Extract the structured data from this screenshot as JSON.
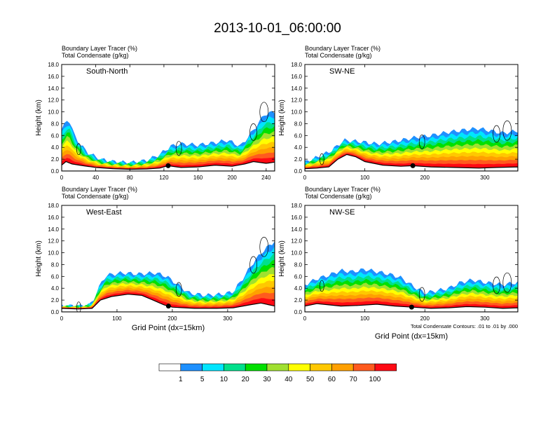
{
  "title": "2013-10-01_06:00:00",
  "panels": [
    {
      "name": "south-north",
      "label": "South-North",
      "field_title_1": "Boundary Layer Tracer   (%)",
      "field_title_2": "Total Condensate   (g/kg)",
      "ylabel": "Height (km)",
      "xlabel": "",
      "xmax": 250,
      "xticks": [
        0,
        40,
        80,
        120,
        160,
        200,
        240
      ],
      "marker_x": 125,
      "contour_note": "",
      "terrain": [
        [
          0,
          1.0
        ],
        [
          5,
          1.6
        ],
        [
          12,
          1.2
        ],
        [
          25,
          0.9
        ],
        [
          40,
          0.6
        ],
        [
          60,
          0.4
        ],
        [
          80,
          0.3
        ],
        [
          100,
          0.35
        ],
        [
          115,
          0.5
        ],
        [
          125,
          0.9
        ],
        [
          140,
          0.6
        ],
        [
          160,
          0.7
        ],
        [
          180,
          1.0
        ],
        [
          200,
          0.8
        ],
        [
          215,
          1.2
        ],
        [
          225,
          1.6
        ],
        [
          240,
          1.3
        ],
        [
          250,
          1.5
        ]
      ],
      "top": [
        [
          0,
          7
        ],
        [
          8,
          9
        ],
        [
          15,
          6
        ],
        [
          22,
          4.5
        ],
        [
          30,
          3.2
        ],
        [
          45,
          2.0
        ],
        [
          60,
          1.6
        ],
        [
          80,
          1.4
        ],
        [
          100,
          1.8
        ],
        [
          115,
          2.8
        ],
        [
          128,
          4.2
        ],
        [
          140,
          4.6
        ],
        [
          160,
          4.4
        ],
        [
          180,
          4.8
        ],
        [
          195,
          5.2
        ],
        [
          210,
          4.2
        ],
        [
          220,
          6
        ],
        [
          228,
          7.5
        ],
        [
          238,
          9.6
        ],
        [
          250,
          10.0
        ]
      ]
    },
    {
      "name": "sw-ne",
      "label": "SW-NE",
      "field_title_1": "Boundary Layer Tracer   (%)",
      "field_title_2": "Total Condensate   (g/kg)",
      "ylabel": "Height (km)",
      "xlabel": "",
      "xmax": 355,
      "xticks": [
        0,
        100,
        200,
        300
      ],
      "marker_x": 180,
      "contour_note": "",
      "terrain": [
        [
          0,
          0.4
        ],
        [
          20,
          0.5
        ],
        [
          40,
          0.7
        ],
        [
          55,
          2.0
        ],
        [
          70,
          2.8
        ],
        [
          85,
          2.4
        ],
        [
          100,
          1.6
        ],
        [
          130,
          1.0
        ],
        [
          160,
          0.8
        ],
        [
          180,
          0.9
        ],
        [
          210,
          0.7
        ],
        [
          250,
          0.6
        ],
        [
          290,
          0.5
        ],
        [
          320,
          0.6
        ],
        [
          355,
          0.7
        ]
      ],
      "top": [
        [
          0,
          1.5
        ],
        [
          25,
          2.5
        ],
        [
          45,
          3.5
        ],
        [
          65,
          5.2
        ],
        [
          90,
          5.0
        ],
        [
          120,
          4.6
        ],
        [
          150,
          5.0
        ],
        [
          180,
          5.6
        ],
        [
          210,
          6.0
        ],
        [
          240,
          6.6
        ],
        [
          270,
          7.0
        ],
        [
          290,
          7.2
        ],
        [
          310,
          6.8
        ],
        [
          330,
          6.4
        ],
        [
          355,
          6.8
        ]
      ]
    },
    {
      "name": "west-east",
      "label": "West-East",
      "field_title_1": "Boundary Layer Tracer   (%)",
      "field_title_2": "Total Condensate   (g/kg)",
      "ylabel": "Height (km)",
      "xlabel": "Grid Point (dx=15km)",
      "xmax": 385,
      "xticks": [
        0,
        100,
        200,
        300
      ],
      "marker_x": 193,
      "contour_note": "",
      "terrain": [
        [
          0,
          0.6
        ],
        [
          30,
          0.5
        ],
        [
          55,
          0.6
        ],
        [
          70,
          2.0
        ],
        [
          90,
          2.6
        ],
        [
          120,
          3.0
        ],
        [
          145,
          2.8
        ],
        [
          165,
          2.0
        ],
        [
          185,
          1.2
        ],
        [
          200,
          0.8
        ],
        [
          240,
          0.6
        ],
        [
          280,
          0.6
        ],
        [
          310,
          0.7
        ],
        [
          340,
          1.2
        ],
        [
          360,
          1.5
        ],
        [
          385,
          1.0
        ]
      ],
      "top": [
        [
          0,
          1.0
        ],
        [
          40,
          1.0
        ],
        [
          55,
          1.4
        ],
        [
          65,
          3.8
        ],
        [
          80,
          6.2
        ],
        [
          110,
          6.6
        ],
        [
          140,
          6.4
        ],
        [
          170,
          6.6
        ],
        [
          190,
          6.0
        ],
        [
          210,
          4.6
        ],
        [
          230,
          3.2
        ],
        [
          260,
          2.8
        ],
        [
          290,
          3.0
        ],
        [
          310,
          3.4
        ],
        [
          330,
          6.0
        ],
        [
          345,
          8.2
        ],
        [
          365,
          10.4
        ],
        [
          385,
          12.0
        ]
      ]
    },
    {
      "name": "nw-se",
      "label": "NW-SE",
      "field_title_1": "Boundary Layer Tracer   (%)",
      "field_title_2": "Total Condensate   (g/kg)",
      "ylabel": "Height (km)",
      "xlabel": "Grid Point (dx=15km)",
      "xmax": 355,
      "xticks": [
        0,
        100,
        200,
        300
      ],
      "marker_x": 178,
      "contour_note": "Total Condensate Contours: .01 to .01 by .000",
      "terrain": [
        [
          0,
          1.0
        ],
        [
          20,
          1.4
        ],
        [
          40,
          1.2
        ],
        [
          60,
          1.0
        ],
        [
          90,
          1.1
        ],
        [
          120,
          1.3
        ],
        [
          150,
          1.0
        ],
        [
          180,
          0.8
        ],
        [
          210,
          0.6
        ],
        [
          240,
          0.7
        ],
        [
          270,
          0.9
        ],
        [
          300,
          0.8
        ],
        [
          330,
          0.6
        ],
        [
          355,
          0.7
        ]
      ],
      "top": [
        [
          0,
          4.6
        ],
        [
          20,
          5.6
        ],
        [
          40,
          6.2
        ],
        [
          60,
          7.0
        ],
        [
          80,
          6.8
        ],
        [
          100,
          7.2
        ],
        [
          120,
          6.8
        ],
        [
          140,
          6.4
        ],
        [
          160,
          5.8
        ],
        [
          180,
          4.4
        ],
        [
          200,
          3.2
        ],
        [
          220,
          3.6
        ],
        [
          240,
          4.0
        ],
        [
          260,
          5.0
        ],
        [
          280,
          5.4
        ],
        [
          300,
          5.0
        ],
        [
          330,
          4.6
        ],
        [
          355,
          5.0
        ]
      ]
    }
  ],
  "colorbar": {
    "colors": [
      "#ffffff",
      "#1e90ff",
      "#00e5ff",
      "#00e08c",
      "#00e000",
      "#a0e030",
      "#ffff00",
      "#ffc800",
      "#ffa000",
      "#ff5a1e",
      "#ff0a14"
    ],
    "labels": [
      "1",
      "5",
      "10",
      "20",
      "30",
      "40",
      "50",
      "60",
      "70",
      "100"
    ]
  },
  "chart_data": {
    "type": "heatmap",
    "title": "2013-10-01_06:00:00",
    "ylabel": "Height (km)",
    "xlabel": "Grid Point (dx=15km)",
    "ylim": [
      0,
      18
    ],
    "yticks": [
      0.0,
      2.0,
      4.0,
      6.0,
      8.0,
      10.0,
      12.0,
      14.0,
      16.0,
      18.0
    ],
    "series": [
      {
        "name": "Boundary Layer Tracer (%)",
        "levels": [
          1,
          5,
          10,
          20,
          30,
          40,
          50,
          60,
          70,
          100
        ]
      },
      {
        "name": "Total Condensate (g/kg)",
        "contour_levels": [
          0.01
        ]
      }
    ],
    "panels": [
      "South-North",
      "SW-NE",
      "West-East",
      "NW-SE"
    ]
  }
}
